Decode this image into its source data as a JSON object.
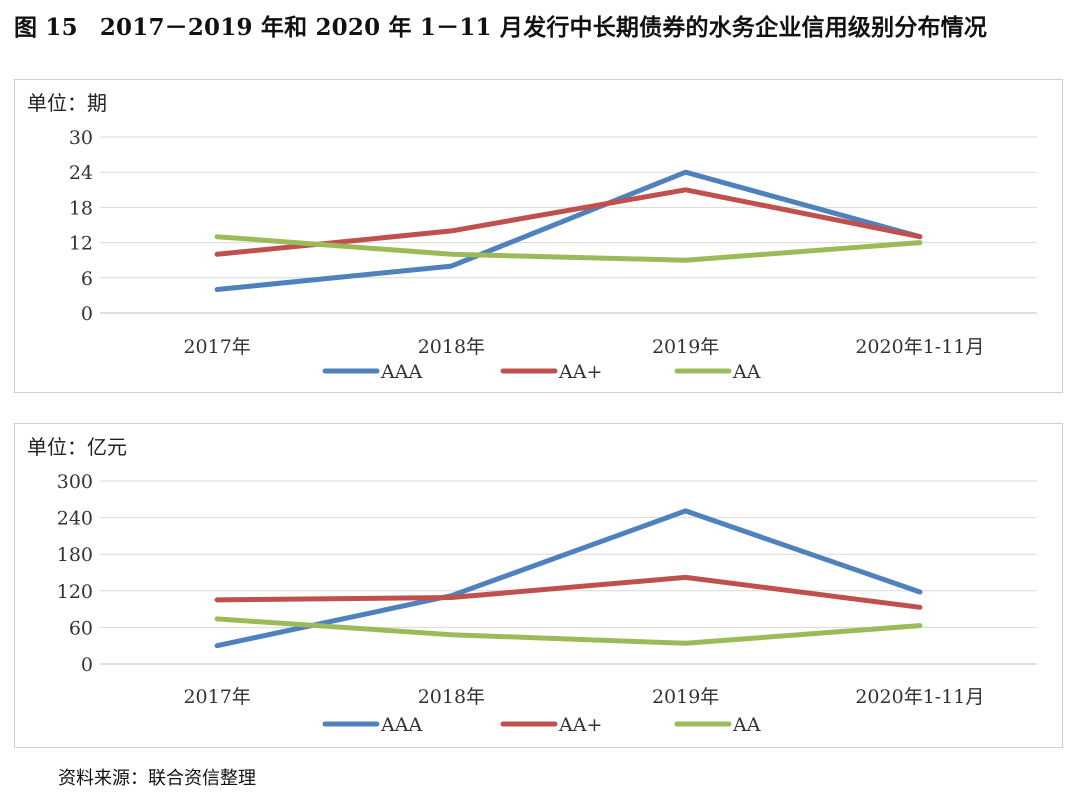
{
  "figure": {
    "number": "图 15",
    "title": "2017－2019 年和 2020 年 1－11 月发行中长期债券的水务企业信用级别分布情况"
  },
  "source": "资料来源：联合资信整理",
  "colors": {
    "AAA": "#4f81bd",
    "AA+": "#c0504d",
    "AA": "#9bbb59",
    "grid": "#d9d9d9",
    "axis": "#bfbfbf"
  },
  "chart_data": [
    {
      "type": "line",
      "unit_label": "单位：期",
      "categories": [
        "2017年",
        "2018年",
        "2019年",
        "2020年1-11月"
      ],
      "ylim": [
        0,
        30
      ],
      "yticks": [
        0,
        6,
        12,
        18,
        24,
        30
      ],
      "grid": true,
      "legend": "bottom",
      "series": [
        {
          "name": "AAA",
          "values": [
            4,
            8,
            24,
            13
          ]
        },
        {
          "name": "AA+",
          "values": [
            10,
            14,
            21,
            13
          ]
        },
        {
          "name": "AA",
          "values": [
            13,
            10,
            9,
            12
          ]
        }
      ]
    },
    {
      "type": "line",
      "unit_label": "单位：亿元",
      "categories": [
        "2017年",
        "2018年",
        "2019年",
        "2020年1-11月"
      ],
      "ylim": [
        0,
        300
      ],
      "yticks": [
        0,
        60,
        120,
        180,
        240,
        300
      ],
      "grid": true,
      "legend": "bottom",
      "series": [
        {
          "name": "AAA",
          "values": [
            30,
            112,
            251,
            118
          ]
        },
        {
          "name": "AA+",
          "values": [
            105,
            109,
            142,
            93
          ]
        },
        {
          "name": "AA",
          "values": [
            74,
            48,
            34,
            63
          ]
        }
      ]
    }
  ]
}
